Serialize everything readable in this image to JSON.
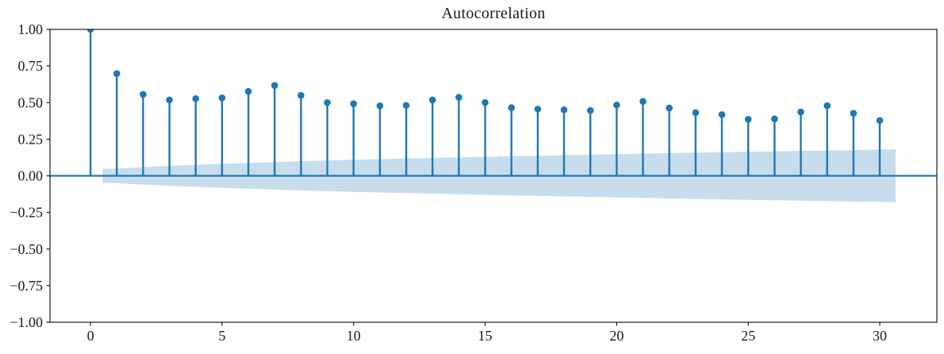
{
  "chart_data": {
    "type": "scatter",
    "subtype": "stem-plot-autocorrelation",
    "title": "Autocorrelation",
    "xlabel": "",
    "ylabel": "",
    "grid": false,
    "legend": null,
    "xlim": [
      -1.54,
      32.17
    ],
    "ylim": [
      -1.0,
      1.0
    ],
    "x": [
      0,
      1,
      2,
      3,
      4,
      5,
      6,
      7,
      8,
      9,
      10,
      11,
      12,
      13,
      14,
      15,
      16,
      17,
      18,
      19,
      20,
      21,
      22,
      23,
      24,
      25,
      26,
      27,
      28,
      29,
      30
    ],
    "values": [
      1.0,
      0.698,
      0.556,
      0.518,
      0.527,
      0.532,
      0.576,
      0.617,
      0.549,
      0.5,
      0.492,
      0.478,
      0.481,
      0.518,
      0.536,
      0.501,
      0.465,
      0.456,
      0.451,
      0.446,
      0.483,
      0.508,
      0.463,
      0.431,
      0.418,
      0.386,
      0.389,
      0.436,
      0.479,
      0.427,
      0.378
    ],
    "confidence_band": {
      "x": [
        0.46,
        1,
        2,
        3,
        4,
        5,
        6,
        7,
        8,
        9,
        10,
        11,
        12,
        13,
        14,
        15,
        16,
        17,
        18,
        19,
        20,
        21,
        22,
        23,
        24,
        25,
        26,
        27,
        28,
        29,
        30,
        30.6
      ],
      "upper": [
        0.048,
        0.05,
        0.06,
        0.068,
        0.075,
        0.082,
        0.088,
        0.094,
        0.1,
        0.105,
        0.11,
        0.114,
        0.118,
        0.122,
        0.126,
        0.13,
        0.134,
        0.137,
        0.141,
        0.144,
        0.148,
        0.151,
        0.155,
        0.158,
        0.161,
        0.164,
        0.167,
        0.17,
        0.173,
        0.176,
        0.179,
        0.181
      ],
      "lower": [
        -0.048,
        -0.05,
        -0.06,
        -0.068,
        -0.075,
        -0.082,
        -0.088,
        -0.094,
        -0.1,
        -0.105,
        -0.11,
        -0.114,
        -0.118,
        -0.122,
        -0.126,
        -0.13,
        -0.134,
        -0.137,
        -0.141,
        -0.144,
        -0.148,
        -0.151,
        -0.155,
        -0.158,
        -0.161,
        -0.164,
        -0.167,
        -0.17,
        -0.173,
        -0.176,
        -0.179,
        -0.181
      ]
    },
    "xticks": {
      "values": [
        0,
        5,
        10,
        15,
        20,
        25,
        30
      ],
      "labels": [
        "0",
        "5",
        "10",
        "15",
        "20",
        "25",
        "30"
      ]
    },
    "yticks": {
      "values": [
        1.0,
        0.75,
        0.5,
        0.25,
        0.0,
        -0.25,
        -0.5,
        -0.75,
        -1.0
      ],
      "labels": [
        "1.00",
        "0.75",
        "0.50",
        "0.25",
        "0.00",
        "−0.25",
        "−0.50",
        "−0.75",
        "−1.00"
      ]
    },
    "colors": {
      "marker": "#1f77b4",
      "stem": "#1f77b4",
      "zero_line": "#1f77b4",
      "band": "rgba(31,119,180,0.25)",
      "spine": "#1c1c1c",
      "text": "#1a1a1a",
      "background": "#ffffff"
    }
  }
}
